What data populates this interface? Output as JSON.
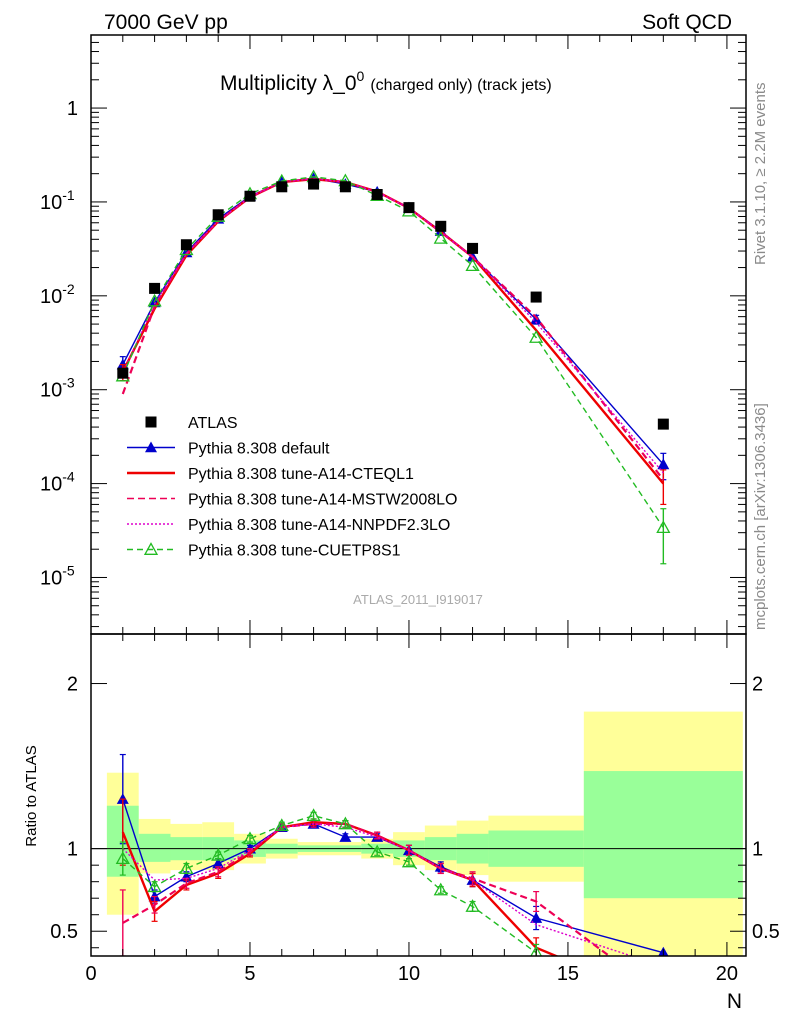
{
  "header": {
    "left": "7000 GeV pp",
    "right": "Soft QCD"
  },
  "title": {
    "main": "Multiplicity λ_0",
    "superscript": "0",
    "suffix": "(charged only) (track jets)"
  },
  "side_labels": {
    "rivet": "Rivet 3.1.10, ≥ 2.2M events",
    "mcplots": "mcplots.cern.ch [arXiv:1306.3436]"
  },
  "analysis_tag": "ATLAS_2011_I919017",
  "colors": {
    "data": "#000000",
    "default": "#0000cc",
    "cteql1": "#ee0000",
    "mstw": "#ee0055",
    "nnpdf": "#dd00cc",
    "cuetp8s1": "#22bb22",
    "band_green": "#99ff99",
    "band_yellow": "#ffff99"
  },
  "chart_data": [
    {
      "type": "line",
      "panel": "main",
      "yscale": "log",
      "xlim": [
        0,
        20.6
      ],
      "ylim": [
        2.5e-06,
        6
      ],
      "y_tick_labels": [
        "1",
        "10^-1",
        "10^-2",
        "10^-3",
        "10^-4",
        "10^-5"
      ],
      "legend_position": "bottom-left",
      "series": [
        {
          "name": "ATLAS",
          "key": "data",
          "marker": "square",
          "x": [
            1,
            2,
            3,
            4,
            5,
            6,
            7,
            8,
            9,
            10,
            11,
            12,
            14,
            18
          ],
          "y": [
            0.0015,
            0.012,
            0.035,
            0.073,
            0.115,
            0.145,
            0.155,
            0.145,
            0.12,
            0.087,
            0.055,
            0.032,
            0.0097,
            0.00043
          ]
        },
        {
          "name": "Pythia 8.308 default",
          "key": "default",
          "marker": "triangle-filled",
          "dash": "",
          "x": [
            1,
            2,
            3,
            4,
            5,
            6,
            7,
            8,
            9,
            10,
            11,
            12,
            14,
            18
          ],
          "y": [
            0.00185,
            0.0085,
            0.029,
            0.066,
            0.115,
            0.163,
            0.178,
            0.155,
            0.128,
            0.087,
            0.049,
            0.026,
            0.0056,
            0.00016
          ],
          "err": [
            0.0004,
            0,
            0,
            0,
            0,
            0,
            0,
            0,
            0,
            0,
            0,
            0,
            0.0006,
            5e-05
          ]
        },
        {
          "name": "Pythia 8.308 tune-A14-CTEQL1",
          "key": "cteql1",
          "marker": "",
          "dash": "",
          "x": [
            1,
            2,
            3,
            4,
            5,
            6,
            7,
            8,
            9,
            10,
            11,
            12,
            14,
            18
          ],
          "y": [
            0.00155,
            0.0073,
            0.027,
            0.062,
            0.112,
            0.163,
            0.175,
            0.163,
            0.129,
            0.086,
            0.048,
            0.026,
            0.0043,
            0.0001
          ],
          "err": [
            0.0003,
            0,
            0,
            0,
            0,
            0,
            0,
            0,
            0,
            0,
            0,
            0,
            0,
            4e-05
          ]
        },
        {
          "name": "Pythia 8.308 tune-A14-MSTW2008LO",
          "key": "mstw",
          "marker": "",
          "dash": "7,4",
          "x": [
            1,
            2,
            3,
            4,
            5,
            6,
            7,
            8,
            9,
            10,
            11,
            12,
            14,
            18
          ],
          "y": [
            0.0009,
            0.0077,
            0.028,
            0.062,
            0.112,
            0.163,
            0.177,
            0.162,
            0.128,
            0.086,
            0.048,
            0.026,
            0.0059,
            0.00011
          ]
        },
        {
          "name": "Pythia 8.308 tune-A14-NNPDF2.3LO",
          "key": "nnpdf",
          "marker": "",
          "dash": "2,2",
          "x": [
            1,
            2,
            3,
            4,
            5,
            6,
            7,
            8,
            9,
            10,
            11,
            12,
            14,
            18
          ],
          "y": [
            0.0015,
            0.0082,
            0.028,
            0.063,
            0.113,
            0.164,
            0.177,
            0.163,
            0.128,
            0.086,
            0.048,
            0.026,
            0.0052,
            0.00013
          ]
        },
        {
          "name": "Pythia 8.308 tune-CUETP8S1",
          "key": "cuetp8s1",
          "marker": "triangle-open",
          "dash": "6,4",
          "x": [
            1,
            2,
            3,
            4,
            5,
            6,
            7,
            8,
            9,
            10,
            11,
            12,
            14,
            18
          ],
          "y": [
            0.0014,
            0.0088,
            0.031,
            0.07,
            0.122,
            0.167,
            0.185,
            0.168,
            0.117,
            0.08,
            0.041,
            0.021,
            0.0036,
            3.4e-05
          ],
          "err": [
            0,
            0,
            0,
            0,
            0,
            0,
            0,
            0,
            0,
            0,
            0,
            0,
            0,
            2e-05
          ]
        }
      ]
    },
    {
      "type": "line",
      "panel": "ratio",
      "ylabel": "Ratio to ATLAS",
      "xlabel": "N",
      "xlim": [
        0,
        20.6
      ],
      "ylim": [
        0.35,
        2.3
      ],
      "y_tick_labels": [
        "0.5",
        "1",
        "2"
      ],
      "x_tick_labels": [
        "0",
        "5",
        "10",
        "15",
        "20"
      ],
      "bands": [
        {
          "x0": 0.5,
          "x1": 1.5,
          "green": [
            0.83,
            1.26
          ],
          "yellow": [
            0.6,
            1.46
          ]
        },
        {
          "x0": 1.5,
          "x1": 2.5,
          "green": [
            0.92,
            1.09
          ],
          "yellow": [
            0.85,
            1.18
          ]
        },
        {
          "x0": 2.5,
          "x1": 3.5,
          "green": [
            0.93,
            1.07
          ],
          "yellow": [
            0.87,
            1.15
          ]
        },
        {
          "x0": 3.5,
          "x1": 4.5,
          "green": [
            0.93,
            1.07
          ],
          "yellow": [
            0.87,
            1.16
          ]
        },
        {
          "x0": 4.5,
          "x1": 5.5,
          "green": [
            0.95,
            1.05
          ],
          "yellow": [
            0.91,
            1.09
          ]
        },
        {
          "x0": 5.5,
          "x1": 6.5,
          "green": [
            0.97,
            1.03
          ],
          "yellow": [
            0.94,
            1.06
          ]
        },
        {
          "x0": 6.5,
          "x1": 7.5,
          "green": [
            0.98,
            1.02
          ],
          "yellow": [
            0.96,
            1.04
          ]
        },
        {
          "x0": 7.5,
          "x1": 8.5,
          "green": [
            0.98,
            1.02
          ],
          "yellow": [
            0.96,
            1.04
          ]
        },
        {
          "x0": 8.5,
          "x1": 9.5,
          "green": [
            0.97,
            1.03
          ],
          "yellow": [
            0.94,
            1.06
          ]
        },
        {
          "x0": 9.5,
          "x1": 10.5,
          "green": [
            0.95,
            1.05
          ],
          "yellow": [
            0.9,
            1.1
          ]
        },
        {
          "x0": 10.5,
          "x1": 11.5,
          "green": [
            0.93,
            1.07
          ],
          "yellow": [
            0.87,
            1.14
          ]
        },
        {
          "x0": 11.5,
          "x1": 12.5,
          "green": [
            0.91,
            1.09
          ],
          "yellow": [
            0.84,
            1.17
          ]
        },
        {
          "x0": 12.5,
          "x1": 15.5,
          "green": [
            0.89,
            1.11
          ],
          "yellow": [
            0.8,
            1.2
          ]
        },
        {
          "x0": 15.5,
          "x1": 20.5,
          "green": [
            0.7,
            1.47
          ],
          "yellow": [
            0.35,
            1.83
          ]
        }
      ],
      "series": [
        {
          "key": "default",
          "marker": "triangle-filled",
          "dash": "",
          "x": [
            1,
            2,
            3,
            4,
            5,
            6,
            7,
            8,
            9,
            10,
            11,
            12,
            14,
            18
          ],
          "y": [
            1.3,
            0.71,
            0.83,
            0.91,
            1.0,
            1.13,
            1.15,
            1.07,
            1.07,
            0.99,
            0.89,
            0.81,
            0.58,
            0.37
          ],
          "err": [
            0.27,
            0.04,
            0.03,
            0.03,
            0.02,
            0.02,
            0.02,
            0.02,
            0.02,
            0.03,
            0.03,
            0.04,
            0.07,
            0
          ]
        },
        {
          "key": "cteql1",
          "marker": "",
          "dash": "",
          "x": [
            1,
            2,
            3,
            4,
            5,
            6,
            7,
            8,
            9,
            10,
            11,
            12,
            14,
            15
          ],
          "y": [
            1.1,
            0.62,
            0.78,
            0.85,
            0.97,
            1.13,
            1.16,
            1.15,
            1.08,
            0.99,
            0.88,
            0.81,
            0.4,
            0.32
          ],
          "err": [
            0.2,
            0.06,
            0.03,
            0.03,
            0.02,
            0.02,
            0.02,
            0.02,
            0.02,
            0.03,
            0.03,
            0.04,
            0.06,
            0
          ]
        },
        {
          "key": "mstw",
          "marker": "",
          "dash": "7,4",
          "x": [
            1,
            2,
            3,
            4,
            5,
            6,
            7,
            8,
            9,
            10,
            11,
            12,
            14,
            16.3
          ],
          "y": [
            0.55,
            0.66,
            0.79,
            0.86,
            0.98,
            1.13,
            1.15,
            1.15,
            1.08,
            0.99,
            0.88,
            0.82,
            0.68,
            0.35
          ],
          "err": [
            0.2,
            0.05,
            0.03,
            0.03,
            0.02,
            0.02,
            0.02,
            0.02,
            0.02,
            0.03,
            0.03,
            0.04,
            0.06,
            0
          ]
        },
        {
          "key": "nnpdf",
          "marker": "",
          "dash": "2,2",
          "x": [
            1,
            2,
            3,
            4,
            5,
            6,
            7,
            8,
            9,
            10,
            11,
            12,
            14,
            17
          ],
          "y": [
            1.0,
            0.81,
            0.82,
            0.88,
            0.99,
            1.13,
            1.15,
            1.13,
            1.07,
            0.99,
            0.88,
            0.81,
            0.54,
            0.35
          ],
          "err": [
            0,
            0,
            0,
            0,
            0,
            0,
            0,
            0,
            0,
            0,
            0,
            0,
            0,
            0
          ]
        },
        {
          "key": "cuetp8s1",
          "marker": "triangle-open",
          "dash": "6,4",
          "x": [
            1,
            2,
            3,
            4,
            5,
            6,
            7,
            8,
            9,
            10,
            11,
            12,
            14
          ],
          "y": [
            0.94,
            0.77,
            0.88,
            0.96,
            1.06,
            1.14,
            1.2,
            1.15,
            0.98,
            0.92,
            0.75,
            0.65,
            0.37
          ],
          "err": [
            0.1,
            0.03,
            0.03,
            0.02,
            0.02,
            0.02,
            0.02,
            0.02,
            0.02,
            0.02,
            0.02,
            0.03,
            0.05
          ]
        }
      ]
    }
  ]
}
